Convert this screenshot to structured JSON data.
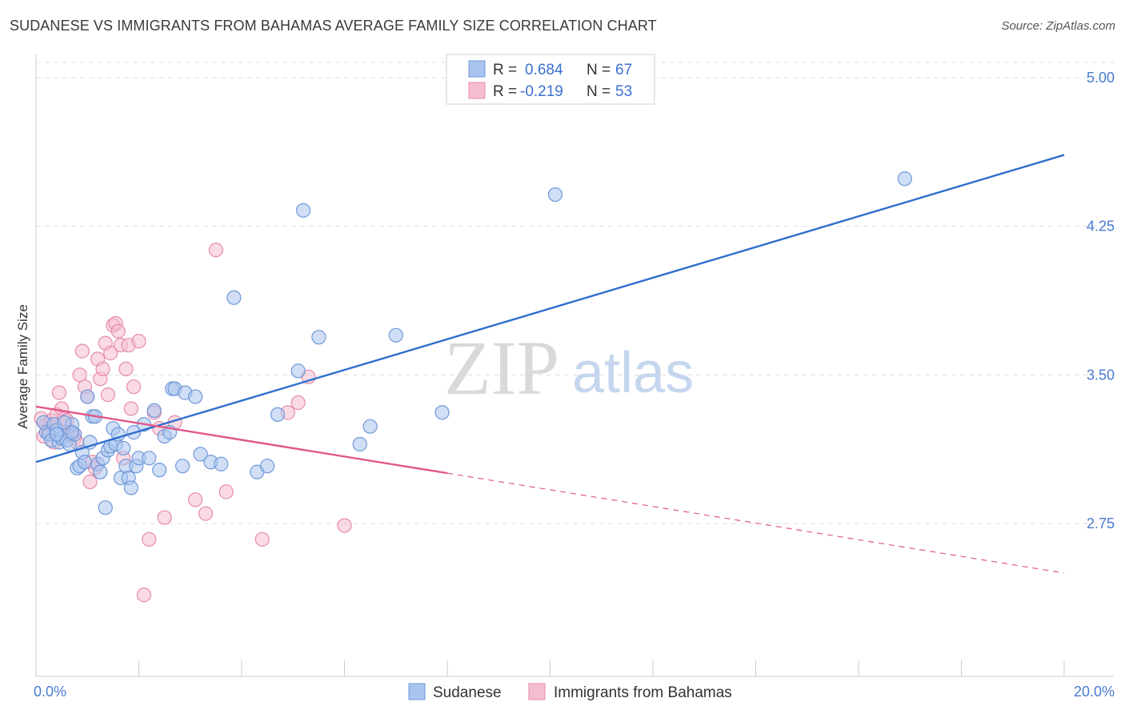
{
  "title": "SUDANESE VS IMMIGRANTS FROM BAHAMAS AVERAGE FAMILY SIZE CORRELATION CHART",
  "source": "Source: ZipAtlas.com",
  "watermark": {
    "zip": "ZIP",
    "atlas": "atlas"
  },
  "colors": {
    "blue_fill": "#a9c4ee",
    "blue_stroke": "#6f98d8",
    "blue_line": "#2f6fcd",
    "pink_fill": "#f6bdd0",
    "pink_stroke": "#e68aab",
    "pink_line": "#e0588a",
    "axis_text": "#4a7bd0",
    "grid": "#dddddd"
  },
  "legend": {
    "rows": [
      {
        "r_label": "R =",
        "r_value": "0.684",
        "n_label": "N =",
        "n_value": "67"
      },
      {
        "r_label": "R =",
        "r_value": "-0.219",
        "n_label": "N =",
        "n_value": "53"
      }
    ]
  },
  "bottom_legend": [
    "Sudanese",
    "Immigrants from Bahamas"
  ],
  "chart_data": {
    "type": "scatter",
    "title": "SUDANESE VS IMMIGRANTS FROM BAHAMAS AVERAGE FAMILY SIZE CORRELATION CHART",
    "xlabel": "",
    "ylabel": "Average Family Size",
    "xlim": [
      0,
      20
    ],
    "ylim": [
      2.0,
      5.1
    ],
    "x_tick_labels": [
      "0.0%",
      "20.0%"
    ],
    "y_ticks": [
      2.75,
      3.5,
      4.25,
      5.0
    ],
    "y_tick_labels": [
      "2.75",
      "3.50",
      "4.25",
      "5.00"
    ],
    "grid": true,
    "legend_position": "top-center",
    "series": [
      {
        "name": "Sudanese",
        "trend": {
          "x": [
            0.0,
            20.0
          ],
          "y": [
            3.06,
            4.61
          ],
          "dashed_from": null
        },
        "points": [
          [
            0.15,
            3.26
          ],
          [
            0.2,
            3.21
          ],
          [
            0.25,
            3.2
          ],
          [
            0.3,
            3.17
          ],
          [
            0.35,
            3.25
          ],
          [
            0.4,
            3.22
          ],
          [
            0.45,
            3.16
          ],
          [
            0.5,
            3.18
          ],
          [
            0.6,
            3.17
          ],
          [
            0.65,
            3.15
          ],
          [
            0.7,
            3.25
          ],
          [
            0.75,
            3.2
          ],
          [
            0.8,
            3.03
          ],
          [
            0.85,
            3.04
          ],
          [
            0.9,
            3.11
          ],
          [
            0.95,
            3.06
          ],
          [
            1.0,
            3.39
          ],
          [
            1.05,
            3.16
          ],
          [
            1.1,
            3.29
          ],
          [
            1.15,
            3.29
          ],
          [
            1.2,
            3.05
          ],
          [
            1.25,
            3.01
          ],
          [
            1.3,
            3.08
          ],
          [
            1.35,
            2.83
          ],
          [
            1.4,
            3.12
          ],
          [
            1.45,
            3.14
          ],
          [
            1.5,
            3.23
          ],
          [
            1.55,
            3.15
          ],
          [
            1.6,
            3.2
          ],
          [
            1.65,
            2.98
          ],
          [
            1.7,
            3.13
          ],
          [
            1.75,
            3.04
          ],
          [
            1.8,
            2.98
          ],
          [
            1.85,
            2.93
          ],
          [
            1.9,
            3.21
          ],
          [
            1.95,
            3.04
          ],
          [
            2.0,
            3.08
          ],
          [
            2.1,
            3.25
          ],
          [
            2.2,
            3.08
          ],
          [
            2.3,
            3.32
          ],
          [
            2.4,
            3.02
          ],
          [
            2.5,
            3.19
          ],
          [
            2.6,
            3.21
          ],
          [
            2.65,
            3.43
          ],
          [
            2.7,
            3.43
          ],
          [
            2.85,
            3.04
          ],
          [
            2.9,
            3.41
          ],
          [
            3.1,
            3.39
          ],
          [
            3.2,
            3.1
          ],
          [
            3.4,
            3.06
          ],
          [
            3.6,
            3.05
          ],
          [
            3.85,
            3.89
          ],
          [
            4.3,
            3.01
          ],
          [
            4.5,
            3.04
          ],
          [
            4.7,
            3.3
          ],
          [
            5.1,
            3.52
          ],
          [
            5.2,
            4.33
          ],
          [
            5.5,
            3.69
          ],
          [
            6.3,
            3.15
          ],
          [
            6.5,
            3.24
          ],
          [
            7.0,
            3.7
          ],
          [
            7.9,
            3.31
          ],
          [
            10.1,
            4.41
          ],
          [
            16.9,
            4.49
          ],
          [
            0.4,
            3.2
          ],
          [
            0.55,
            3.26
          ],
          [
            0.7,
            3.21
          ]
        ]
      },
      {
        "name": "Immigrants from Bahamas",
        "trend": {
          "x": [
            0.0,
            20.0
          ],
          "y": [
            3.34,
            2.5
          ],
          "dashed_from": 8.0
        },
        "points": [
          [
            0.1,
            3.28
          ],
          [
            0.15,
            3.19
          ],
          [
            0.2,
            3.25
          ],
          [
            0.25,
            3.22
          ],
          [
            0.3,
            3.27
          ],
          [
            0.35,
            3.16
          ],
          [
            0.4,
            3.3
          ],
          [
            0.45,
            3.41
          ],
          [
            0.5,
            3.33
          ],
          [
            0.55,
            3.28
          ],
          [
            0.6,
            3.27
          ],
          [
            0.65,
            3.21
          ],
          [
            0.7,
            3.2
          ],
          [
            0.75,
            3.18
          ],
          [
            0.8,
            3.16
          ],
          [
            0.85,
            3.5
          ],
          [
            0.9,
            3.62
          ],
          [
            0.95,
            3.44
          ],
          [
            1.0,
            3.39
          ],
          [
            1.05,
            2.96
          ],
          [
            1.1,
            3.06
          ],
          [
            1.15,
            3.03
          ],
          [
            1.2,
            3.58
          ],
          [
            1.25,
            3.48
          ],
          [
            1.3,
            3.53
          ],
          [
            1.35,
            3.66
          ],
          [
            1.4,
            3.4
          ],
          [
            1.45,
            3.61
          ],
          [
            1.5,
            3.75
          ],
          [
            1.55,
            3.76
          ],
          [
            1.6,
            3.72
          ],
          [
            1.65,
            3.65
          ],
          [
            1.7,
            3.08
          ],
          [
            1.75,
            3.53
          ],
          [
            1.8,
            3.65
          ],
          [
            1.85,
            3.33
          ],
          [
            1.9,
            3.44
          ],
          [
            2.0,
            3.67
          ],
          [
            2.1,
            2.39
          ],
          [
            2.2,
            2.67
          ],
          [
            2.3,
            3.31
          ],
          [
            2.4,
            3.23
          ],
          [
            2.5,
            2.78
          ],
          [
            2.7,
            3.26
          ],
          [
            3.1,
            2.87
          ],
          [
            3.3,
            2.8
          ],
          [
            3.5,
            4.13
          ],
          [
            3.7,
            2.91
          ],
          [
            4.4,
            2.67
          ],
          [
            4.9,
            3.31
          ],
          [
            5.1,
            3.36
          ],
          [
            5.3,
            3.49
          ],
          [
            6.0,
            2.74
          ]
        ]
      }
    ]
  }
}
